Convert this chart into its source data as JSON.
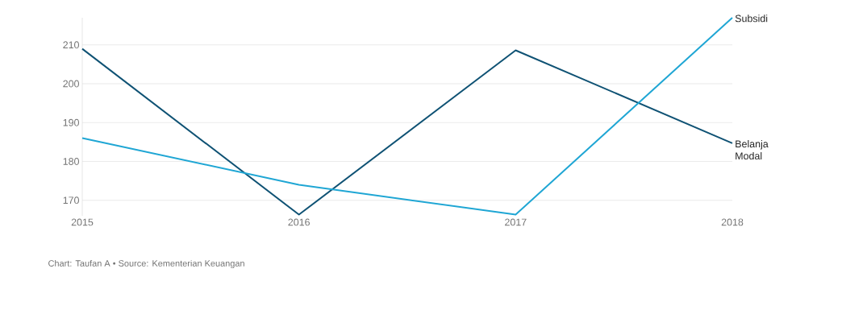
{
  "chart_data": {
    "type": "line",
    "x": [
      2015,
      2016,
      2017,
      2018
    ],
    "series": [
      {
        "name": "Belanja Modal",
        "color": "#0f5274",
        "values": [
          209.0,
          166.3,
          208.6,
          184.7
        ]
      },
      {
        "name": "Subsidi",
        "color": "#1fa6d4",
        "values": [
          186.0,
          174.0,
          166.3,
          217.0
        ]
      }
    ],
    "xlim": [
      2015,
      2018
    ],
    "xticks": [
      2015,
      2016,
      2017,
      2018
    ],
    "ylim": [
      166,
      217
    ],
    "yticks": [
      170,
      180,
      190,
      200,
      210
    ],
    "grid": "y",
    "annotations": [
      "Chart: Taufan A • Source: Kementerian Keuangan"
    ]
  }
}
